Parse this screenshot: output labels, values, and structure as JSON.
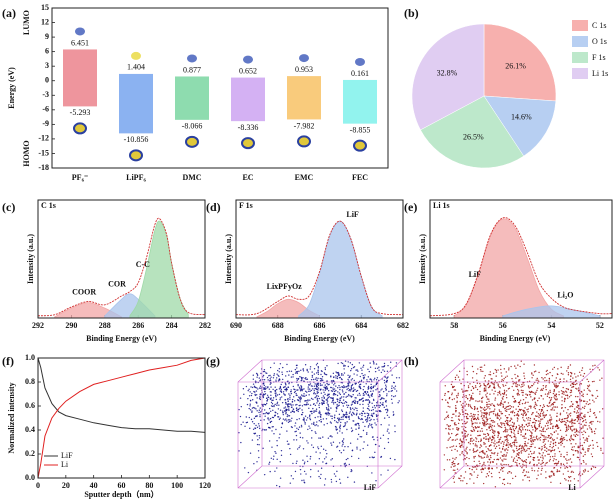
{
  "chart_data": [
    {
      "type": "range_bar",
      "panel_label": "(a)",
      "ylabel": "Energy (eV)",
      "categories": [
        "PF₆⁻",
        "LiPF₆",
        "DMC",
        "EC",
        "EMC",
        "FEC"
      ],
      "series": [
        {
          "name": "LUMO",
          "values": [
            6.451,
            1.404,
            0.877,
            0.652,
            0.953,
            0.161
          ]
        },
        {
          "name": "HOMO",
          "values": [
            -5.293,
            -10.856,
            -8.066,
            -8.336,
            -7.982,
            -8.855
          ]
        }
      ],
      "colors": [
        "#ec8a92",
        "#7eaaf0",
        "#82d8a6",
        "#cfa8f2",
        "#f8c56e",
        "#86f2ec"
      ],
      "label_colors": [
        "#c0392b",
        "#1f3550",
        "#1f3550",
        "#1f3550",
        "#1f3550",
        "#1f3550"
      ],
      "ylim": [
        -18,
        15
      ],
      "yticks": [
        -18,
        -15,
        -12,
        -9,
        -6,
        -3,
        0,
        3,
        6,
        9,
        12,
        15
      ]
    },
    {
      "type": "pie",
      "panel_label": "(b)",
      "categories": [
        "C 1s",
        "O 1s",
        "F 1s",
        "Li 1s"
      ],
      "values": [
        26.1,
        14.6,
        26.5,
        32.8
      ],
      "value_labels": [
        "26.1%",
        "14.6%",
        "26.5%",
        "32.8%"
      ],
      "colors": [
        "#f7b0ae",
        "#b7cff2",
        "#bde8cb",
        "#e0cdf2"
      ],
      "legend": "right"
    },
    {
      "type": "spectrum",
      "panel_label": "(c)",
      "title": "C 1s",
      "xlabel": "Binding Energy (eV)",
      "ylabel": "Intensity (a.u.)",
      "xlim": [
        292,
        282
      ],
      "xticks": [
        292,
        290,
        288,
        286,
        284,
        282
      ],
      "ylim": [
        0,
        1
      ],
      "components": [
        {
          "name": "COOR",
          "color": "#f2a5a5",
          "x": [
            291,
            290,
            289,
            288,
            287
          ],
          "values": [
            0.01,
            0.09,
            0.14,
            0.09,
            0.01
          ]
        },
        {
          "name": "COR",
          "color": "#a9c4ec",
          "x": [
            288,
            287,
            286.5,
            286,
            285
          ],
          "values": [
            0.02,
            0.17,
            0.22,
            0.17,
            0.02
          ]
        },
        {
          "name": "C-C",
          "color": "#9fd9a8",
          "x": [
            286.5,
            286,
            285.5,
            285,
            284.7,
            284.3,
            284,
            283.5,
            283
          ],
          "values": [
            0.02,
            0.15,
            0.45,
            0.8,
            0.88,
            0.75,
            0.5,
            0.18,
            0.03
          ]
        }
      ],
      "envelope": {
        "x": [
          292,
          291,
          290,
          289,
          288,
          287,
          286.5,
          286,
          285.5,
          285,
          284.7,
          284.3,
          284,
          283.5,
          283,
          282
        ],
        "values": [
          0.02,
          0.03,
          0.1,
          0.15,
          0.12,
          0.2,
          0.24,
          0.32,
          0.55,
          0.85,
          0.9,
          0.76,
          0.5,
          0.18,
          0.05,
          0.03
        ]
      }
    },
    {
      "type": "spectrum",
      "panel_label": "(d)",
      "title": "F 1s",
      "xlabel": "Binding Energy (eV)",
      "ylabel": "Intensity (a.u.)",
      "xlim": [
        690,
        682
      ],
      "xticks": [
        690,
        688,
        686,
        684,
        682
      ],
      "ylim": [
        0,
        1
      ],
      "components": [
        {
          "name": "LixPFyOz",
          "color": "#f2a5a5",
          "x": [
            689,
            688.5,
            688,
            687.5,
            687,
            686.5,
            686
          ],
          "values": [
            0.01,
            0.06,
            0.13,
            0.17,
            0.14,
            0.07,
            0.02
          ]
        },
        {
          "name": "LiF",
          "color": "#a9c4ec",
          "x": [
            687,
            686.5,
            686,
            685.5,
            685,
            684.5,
            684,
            683.5,
            683
          ],
          "values": [
            0.02,
            0.12,
            0.4,
            0.75,
            0.88,
            0.72,
            0.38,
            0.1,
            0.02
          ]
        }
      ],
      "envelope": {
        "x": [
          690,
          689,
          688,
          687.5,
          687,
          686.5,
          686,
          685.5,
          685,
          684.5,
          684,
          683.5,
          683,
          682
        ],
        "values": [
          0.03,
          0.04,
          0.15,
          0.2,
          0.17,
          0.2,
          0.42,
          0.76,
          0.88,
          0.72,
          0.38,
          0.1,
          0.04,
          0.03
        ]
      }
    },
    {
      "type": "spectrum",
      "panel_label": "(e)",
      "title": "Li 1s",
      "xlabel": "Binding Energy (eV)",
      "ylabel": "Intensity (a.u.)",
      "xlim": [
        59,
        51.5
      ],
      "xticks": [
        58,
        56,
        54,
        52
      ],
      "ylim": [
        0,
        1
      ],
      "components": [
        {
          "name": "LiF",
          "color": "#f2a5a5",
          "x": [
            58,
            57.5,
            57,
            56.5,
            56,
            55.5,
            55,
            54.5,
            54,
            53.5
          ],
          "values": [
            0.02,
            0.12,
            0.4,
            0.75,
            0.9,
            0.82,
            0.55,
            0.25,
            0.08,
            0.02
          ]
        },
        {
          "name": "Li₂O",
          "color": "#a9c4ec",
          "x": [
            56,
            55,
            54,
            53,
            52
          ],
          "values": [
            0.02,
            0.08,
            0.11,
            0.07,
            0.02
          ]
        }
      ],
      "envelope": {
        "x": [
          59,
          58,
          57.5,
          57,
          56.5,
          56,
          55.5,
          55,
          54.5,
          54,
          53.5,
          53,
          52,
          51.5
        ],
        "values": [
          0.02,
          0.04,
          0.13,
          0.41,
          0.76,
          0.91,
          0.84,
          0.6,
          0.32,
          0.18,
          0.1,
          0.07,
          0.04,
          0.04
        ]
      }
    },
    {
      "type": "line",
      "panel_label": "(f)",
      "xlabel": "Sputter depth（nm）",
      "ylabel": "Normalized intensity",
      "x": [
        0,
        2,
        5,
        10,
        15,
        20,
        30,
        40,
        50,
        60,
        70,
        80,
        90,
        100,
        110,
        120
      ],
      "series": [
        {
          "name": "LiF",
          "color": "#333333",
          "values": [
            1.0,
            0.92,
            0.75,
            0.62,
            0.55,
            0.52,
            0.49,
            0.46,
            0.44,
            0.42,
            0.41,
            0.41,
            0.4,
            0.39,
            0.39,
            0.38
          ]
        },
        {
          "name": "Li",
          "color": "#e02020",
          "values": [
            0.0,
            0.12,
            0.35,
            0.5,
            0.58,
            0.64,
            0.72,
            0.78,
            0.81,
            0.84,
            0.87,
            0.9,
            0.92,
            0.94,
            0.98,
            1.0
          ]
        }
      ],
      "xlim": [
        0,
        120
      ],
      "xticks": [
        0,
        20,
        40,
        60,
        80,
        100,
        120
      ],
      "ylim": [
        0,
        1
      ],
      "yticks": [
        {
          "value": 0,
          "label": "0.0"
        },
        0.2,
        0.4,
        0.6,
        0.8,
        {
          "value": 1,
          "label": "1.0"
        }
      ],
      "legend": "lower left"
    }
  ],
  "images": [
    {
      "panel_label": "(g)",
      "caption": "LiF"
    },
    {
      "panel_label": "(h)",
      "caption": "Li"
    }
  ]
}
